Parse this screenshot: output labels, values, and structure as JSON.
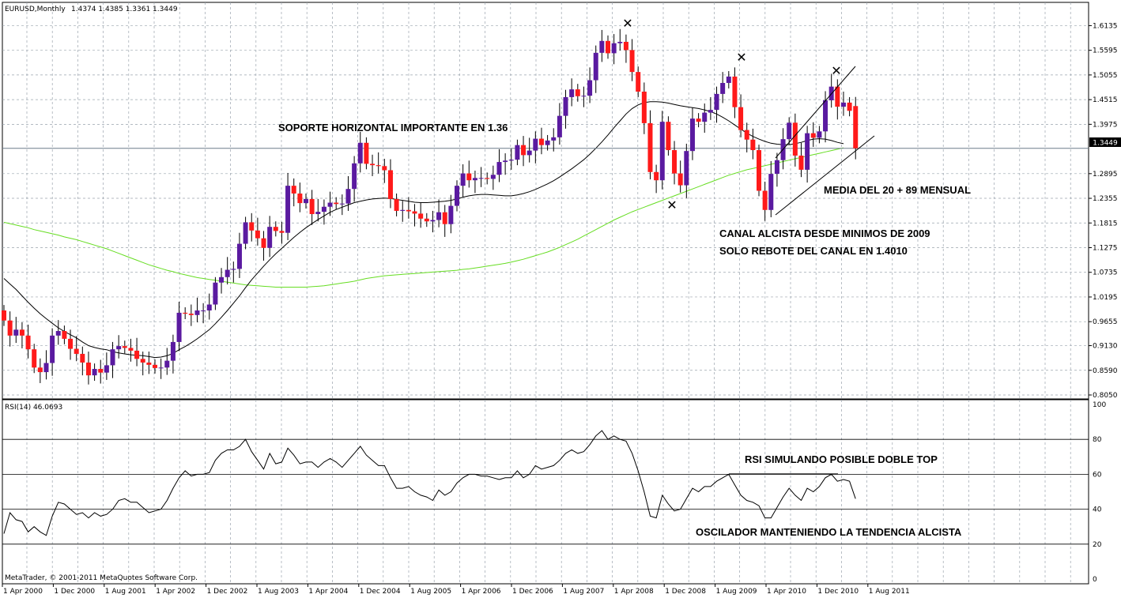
{
  "header": {
    "symbol": "EURUSD,Monthly",
    "ohlc": "1.4374 1.4385 1.3361 1.3449"
  },
  "rsi_header": "RSI(14) 46.0693",
  "copyright": "MetaTrader, © 2001-2011 MetaQuotes Software Corp.",
  "current_price_label": "1.3449",
  "annotations": {
    "support": "SOPORTE HORIZONTAL IMPORTANTE EN 1.36",
    "media": "MEDIA DEL 20 + 89 MENSUAL",
    "canal1": "CANAL ALCISTA DESDE MINIMOS DE 2009",
    "canal2": "SOLO REBOTE DEL CANAL EN 1.4010",
    "rsi_top": "RSI SIMULANDO POSIBLE DOBLE TOP",
    "oscilador": "OSCILADOR MANTENIENDO LA TENDENCIA ALCISTA"
  },
  "colors": {
    "bull": "#5a1aa0",
    "bear": "#ff1a1a",
    "ma20": "#000000",
    "ma89": "#66dd22",
    "grid": "#9aa4ad"
  },
  "chart_data": [
    {
      "type": "candlestick",
      "title": "EURUSD,Monthly",
      "ylim": [
        0.805,
        1.635
      ],
      "y_ticks": [
        "1.6135",
        "1.5595",
        "1.5055",
        "1.4515",
        "1.3975",
        "1.3449",
        "1.2895",
        "1.2355",
        "1.1815",
        "1.1275",
        "1.0735",
        "1.0195",
        "0.9655",
        "0.9130",
        "0.8590",
        "0.8050"
      ],
      "x_ticks": [
        "1 Apr 2000",
        "1 Dec 2000",
        "1 Aug 2001",
        "1 Apr 2002",
        "1 Dec 2002",
        "1 Aug 2003",
        "1 Apr 2004",
        "1 Dec 2004",
        "1 Aug 2005",
        "1 Apr 2006",
        "1 Dec 2006",
        "1 Aug 2007",
        "1 Apr 2008",
        "1 Dec 2008",
        "1 Aug 2009",
        "1 Apr 2010",
        "1 Dec 2010",
        "1 Aug 2011"
      ],
      "horizontal_line": 1.3449,
      "closes": [
        0.968,
        0.935,
        0.948,
        0.935,
        0.905,
        0.865,
        0.855,
        0.875,
        0.935,
        0.945,
        0.928,
        0.906,
        0.895,
        0.876,
        0.848,
        0.862,
        0.854,
        0.87,
        0.905,
        0.912,
        0.908,
        0.902,
        0.884,
        0.876,
        0.871,
        0.864,
        0.865,
        0.88,
        0.921,
        0.985,
        0.983,
        0.98,
        0.99,
        0.99,
        1.003,
        1.051,
        1.063,
        1.079,
        1.081,
        1.136,
        1.183,
        1.165,
        1.148,
        1.127,
        1.173,
        1.164,
        1.16,
        1.263,
        1.246,
        1.225,
        1.234,
        1.201,
        1.206,
        1.217,
        1.226,
        1.223,
        1.224,
        1.256,
        1.312,
        1.357,
        1.311,
        1.308,
        1.306,
        1.297,
        1.234,
        1.208,
        1.21,
        1.207,
        1.202,
        1.191,
        1.185,
        1.188,
        1.205,
        1.179,
        1.219,
        1.263,
        1.29,
        1.275,
        1.28,
        1.28,
        1.278,
        1.287,
        1.315,
        1.318,
        1.32,
        1.352,
        1.33,
        1.34,
        1.366,
        1.352,
        1.362,
        1.369,
        1.416,
        1.457,
        1.474,
        1.459,
        1.46,
        1.494,
        1.554,
        1.58,
        1.553,
        1.575,
        1.578,
        1.56,
        1.512,
        1.469,
        1.4,
        1.293,
        1.275,
        1.403,
        1.341,
        1.29,
        1.264,
        1.339,
        1.41,
        1.403,
        1.423,
        1.429,
        1.464,
        1.488,
        1.502,
        1.435,
        1.385,
        1.364,
        1.341,
        1.252,
        1.21,
        1.289,
        1.319,
        1.365,
        1.401,
        1.329,
        1.298,
        1.378,
        1.368,
        1.382,
        1.45,
        1.48,
        1.436,
        1.445,
        1.427,
        1.3449
      ],
      "opens": [
        0.99,
        0.968,
        0.935,
        0.948,
        0.935,
        0.905,
        0.865,
        0.855,
        0.875,
        0.935,
        0.945,
        0.928,
        0.906,
        0.895,
        0.876,
        0.848,
        0.862,
        0.854,
        0.87,
        0.905,
        0.912,
        0.908,
        0.902,
        0.884,
        0.876,
        0.871,
        0.864,
        0.865,
        0.88,
        0.921,
        0.985,
        0.983,
        0.98,
        0.99,
        0.99,
        1.003,
        1.051,
        1.063,
        1.079,
        1.081,
        1.136,
        1.183,
        1.165,
        1.148,
        1.127,
        1.173,
        1.164,
        1.16,
        1.263,
        1.246,
        1.225,
        1.234,
        1.201,
        1.206,
        1.217,
        1.226,
        1.223,
        1.224,
        1.256,
        1.312,
        1.357,
        1.311,
        1.308,
        1.306,
        1.297,
        1.234,
        1.208,
        1.21,
        1.207,
        1.202,
        1.191,
        1.185,
        1.188,
        1.205,
        1.179,
        1.219,
        1.263,
        1.29,
        1.275,
        1.28,
        1.28,
        1.278,
        1.287,
        1.315,
        1.318,
        1.32,
        1.352,
        1.33,
        1.34,
        1.366,
        1.352,
        1.362,
        1.369,
        1.416,
        1.457,
        1.474,
        1.459,
        1.46,
        1.494,
        1.554,
        1.58,
        1.553,
        1.575,
        1.578,
        1.56,
        1.512,
        1.469,
        1.4,
        1.293,
        1.275,
        1.403,
        1.341,
        1.29,
        1.264,
        1.339,
        1.41,
        1.403,
        1.423,
        1.429,
        1.464,
        1.488,
        1.502,
        1.435,
        1.385,
        1.364,
        1.341,
        1.252,
        1.21,
        1.289,
        1.319,
        1.365,
        1.401,
        1.329,
        1.298,
        1.378,
        1.368,
        1.382,
        1.45,
        1.48,
        1.436,
        1.445,
        1.4374
      ],
      "ma20": [
        1.06,
        1.048,
        1.036,
        1.022,
        1.008,
        0.995,
        0.983,
        0.972,
        0.962,
        0.952,
        0.944,
        0.937,
        0.93,
        0.921,
        0.913,
        0.909,
        0.906,
        0.904,
        0.9,
        0.897,
        0.895,
        0.893,
        0.892,
        0.891,
        0.889,
        0.887,
        0.888,
        0.891,
        0.896,
        0.904,
        0.911,
        0.919,
        0.928,
        0.938,
        0.948,
        0.961,
        0.975,
        0.99,
        1.006,
        1.022,
        1.04,
        1.057,
        1.072,
        1.087,
        1.101,
        1.114,
        1.126,
        1.138,
        1.15,
        1.161,
        1.171,
        1.18,
        1.189,
        1.197,
        1.205,
        1.211,
        1.216,
        1.221,
        1.226,
        1.229,
        1.232,
        1.234,
        1.235,
        1.236,
        1.235,
        1.233,
        1.231,
        1.229,
        1.227,
        1.226,
        1.226,
        1.227,
        1.228,
        1.229,
        1.231,
        1.234,
        1.238,
        1.241,
        1.243,
        1.244,
        1.244,
        1.243,
        1.242,
        1.241,
        1.241,
        1.243,
        1.246,
        1.25,
        1.255,
        1.261,
        1.267,
        1.274,
        1.282,
        1.291,
        1.3,
        1.31,
        1.32,
        1.332,
        1.345,
        1.359,
        1.374,
        1.39,
        1.405,
        1.42,
        1.432,
        1.44,
        1.445,
        1.447,
        1.447,
        1.446,
        1.444,
        1.441,
        1.438,
        1.436,
        1.434,
        1.432,
        1.429,
        1.425,
        1.42,
        1.413,
        1.405,
        1.396,
        1.387,
        1.378,
        1.371,
        1.365,
        1.36,
        1.356,
        1.354,
        1.353,
        1.353,
        1.355,
        1.358,
        1.362,
        1.365,
        1.366,
        1.365,
        1.362,
        1.358,
        1.355
      ],
      "ma89": [
        1.183,
        1.18,
        1.177,
        1.174,
        1.171,
        1.167,
        1.164,
        1.161,
        1.158,
        1.155,
        1.151,
        1.148,
        1.145,
        1.141,
        1.137,
        1.133,
        1.129,
        1.125,
        1.12,
        1.115,
        1.11,
        1.105,
        1.1,
        1.095,
        1.09,
        1.086,
        1.082,
        1.078,
        1.075,
        1.071,
        1.068,
        1.065,
        1.062,
        1.06,
        1.058,
        1.056,
        1.054,
        1.052,
        1.05,
        1.048,
        1.046,
        1.045,
        1.044,
        1.043,
        1.042,
        1.041,
        1.041,
        1.041,
        1.041,
        1.041,
        1.041,
        1.042,
        1.043,
        1.044,
        1.046,
        1.048,
        1.05,
        1.052,
        1.054,
        1.057,
        1.06,
        1.062,
        1.064,
        1.066,
        1.067,
        1.068,
        1.069,
        1.07,
        1.071,
        1.072,
        1.073,
        1.074,
        1.075,
        1.076,
        1.077,
        1.078,
        1.08,
        1.081,
        1.083,
        1.085,
        1.087,
        1.089,
        1.091,
        1.093,
        1.096,
        1.099,
        1.102,
        1.106,
        1.11,
        1.114,
        1.118,
        1.123,
        1.128,
        1.134,
        1.14,
        1.146,
        1.153,
        1.16,
        1.167,
        1.174,
        1.181,
        1.188,
        1.194,
        1.2,
        1.206,
        1.211,
        1.216,
        1.221,
        1.226,
        1.231,
        1.236,
        1.241,
        1.246,
        1.251,
        1.256,
        1.261,
        1.266,
        1.271,
        1.276,
        1.281,
        1.286,
        1.29,
        1.294,
        1.298,
        1.301,
        1.304,
        1.307,
        1.31,
        1.313,
        1.316,
        1.319,
        1.322,
        1.325,
        1.328,
        1.331,
        1.334,
        1.337,
        1.34,
        1.343,
        1.346
      ]
    },
    {
      "type": "line",
      "title": "RSI(14) 46.0693",
      "ylim": [
        0,
        100
      ],
      "y_ticks": [
        "100",
        "80",
        "60",
        "40",
        "20",
        "0"
      ],
      "levels": [
        80,
        60,
        40,
        20
      ],
      "values": [
        26,
        38,
        34,
        33,
        27,
        30,
        27,
        25,
        36,
        44,
        43,
        40,
        37,
        38,
        35,
        38,
        36,
        37,
        40,
        45,
        46,
        44,
        44,
        41,
        38,
        39,
        40,
        45,
        52,
        58,
        62,
        59,
        60,
        60,
        61,
        68,
        72,
        74,
        74,
        76,
        80,
        73,
        68,
        63,
        72,
        66,
        67,
        75,
        71,
        66,
        67,
        67,
        64,
        67,
        69,
        67,
        64,
        68,
        72,
        76,
        71,
        68,
        65,
        65,
        58,
        52,
        52,
        53,
        50,
        48,
        47,
        45,
        51,
        48,
        50,
        55,
        58,
        60,
        60,
        59,
        59,
        58,
        57,
        58,
        58,
        62,
        58,
        60,
        65,
        63,
        64,
        65,
        68,
        72,
        74,
        72,
        73,
        77,
        82,
        85,
        80,
        82,
        80,
        79,
        72,
        62,
        50,
        36,
        35,
        48,
        43,
        39,
        40,
        46,
        52,
        50,
        53,
        53,
        56,
        58,
        60,
        54,
        48,
        45,
        44,
        42,
        35,
        35,
        41,
        47,
        52,
        48,
        45,
        52,
        50,
        53,
        58,
        60,
        56,
        57,
        56,
        46
      ]
    }
  ]
}
